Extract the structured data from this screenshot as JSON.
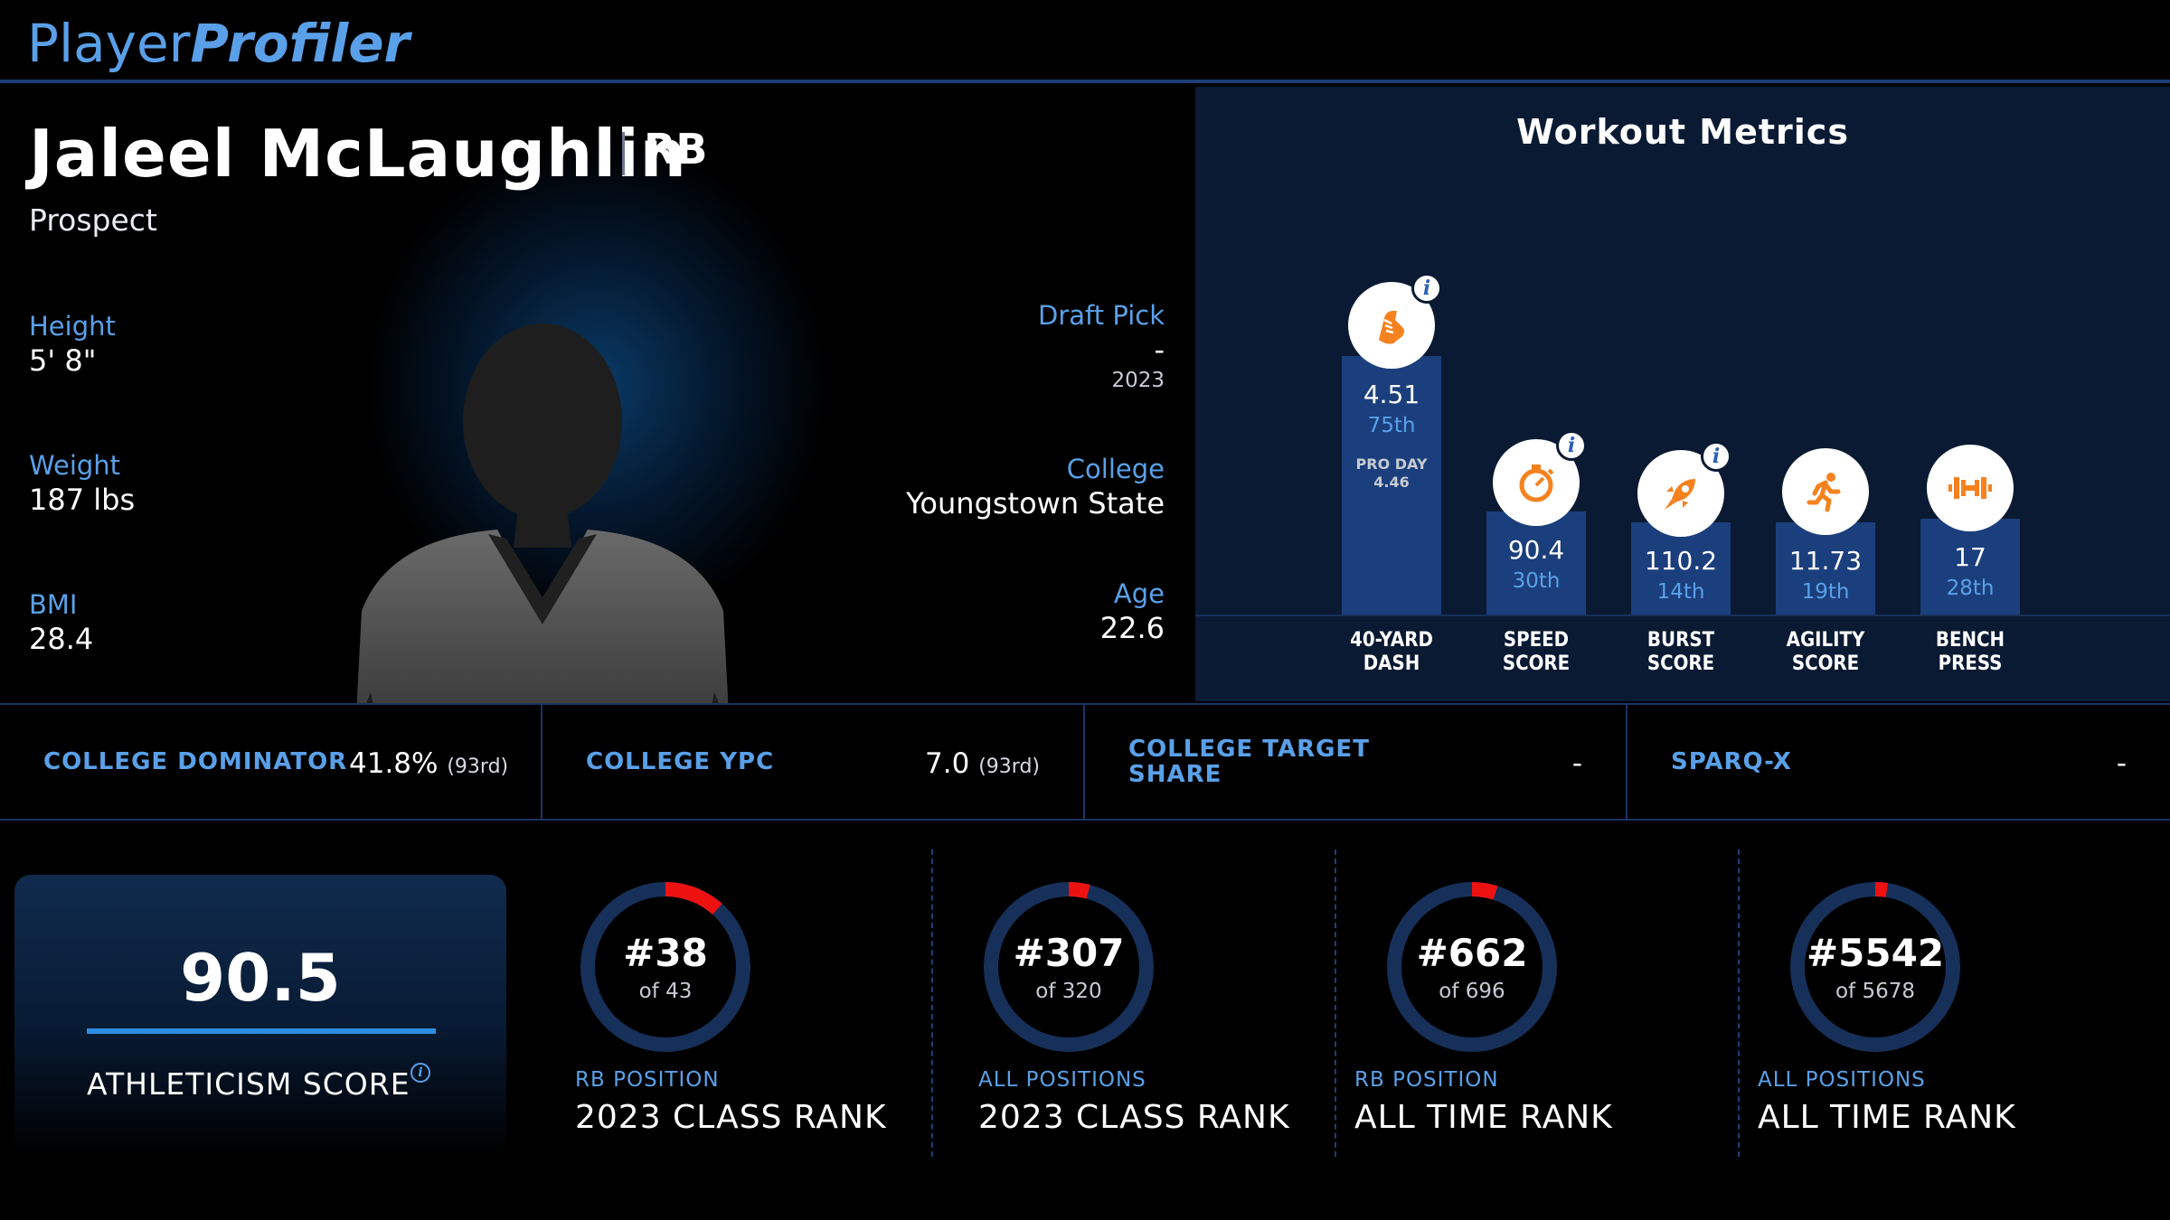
{
  "app": {
    "logo_regular": "Player",
    "logo_bold": "Profiler"
  },
  "player": {
    "name": "Jaleel McLaughlin",
    "position": "RB",
    "status": "Prospect",
    "height_label": "Height",
    "height": "5' 8\"",
    "weight_label": "Weight",
    "weight": "187 lbs",
    "bmi_label": "BMI",
    "bmi": "28.4",
    "draft_pick_label": "Draft Pick",
    "draft_pick": "-",
    "draft_year": "2023",
    "college_label": "College",
    "college": "Youngstown State",
    "age_label": "Age",
    "age": "22.6"
  },
  "workout": {
    "title": "Workout Metrics",
    "metrics": [
      {
        "label_line1": "40-YARD",
        "label_line2": "DASH",
        "value": "4.51",
        "percentile": "75th",
        "extra_label": "PRO DAY",
        "extra_value": "4.46",
        "icon": "running-shoe-icon",
        "has_info": true
      },
      {
        "label_line1": "SPEED",
        "label_line2": "SCORE",
        "value": "90.4",
        "percentile": "30th",
        "icon": "stopwatch-icon",
        "has_info": true
      },
      {
        "label_line1": "BURST",
        "label_line2": "SCORE",
        "value": "110.2",
        "percentile": "14th",
        "icon": "rocket-icon",
        "has_info": true
      },
      {
        "label_line1": "AGILITY",
        "label_line2": "SCORE",
        "value": "11.73",
        "percentile": "19th",
        "icon": "runner-icon",
        "has_info": false
      },
      {
        "label_line1": "BENCH",
        "label_line2": "PRESS",
        "value": "17",
        "percentile": "28th",
        "icon": "dumbbell-icon",
        "has_info": false
      }
    ]
  },
  "college": {
    "dominator_label": "COLLEGE DOMINATOR",
    "dominator_value": "41.8%",
    "dominator_rank": "(93rd)",
    "ypc_label": "COLLEGE YPC",
    "ypc_value": "7.0",
    "ypc_rank": "(93rd)",
    "target_label_line1": "COLLEGE TARGET",
    "target_label_line2": "SHARE",
    "target_value": "-",
    "sparq_label": "SPARQ-X",
    "sparq_value": "-"
  },
  "athleticism": {
    "score": "90.5",
    "label": "ATHLETICISM SCORE",
    "info": "i"
  },
  "ranks": [
    {
      "rank": "#38",
      "of": "of 43",
      "category": "RB POSITION",
      "title": "2023 CLASS RANK",
      "rank_value": 38,
      "total": 43
    },
    {
      "rank": "#307",
      "of": "of 320",
      "category": "ALL POSITIONS",
      "title": "2023 CLASS RANK",
      "rank_value": 307,
      "total": 320
    },
    {
      "rank": "#662",
      "of": "of 696",
      "category": "RB POSITION",
      "title": "ALL TIME RANK",
      "rank_value": 662,
      "total": 696
    },
    {
      "rank": "#5542",
      "of": "of 5678",
      "category": "ALL POSITIONS",
      "title": "ALL TIME RANK",
      "rank_value": 5542,
      "total": 5678
    }
  ],
  "colors": {
    "accent": "#5aa0e8",
    "bar": "#1b3f7c",
    "icon": "#f5821f",
    "ring_track": "#16305a",
    "ring_fill": "#ee1111"
  }
}
